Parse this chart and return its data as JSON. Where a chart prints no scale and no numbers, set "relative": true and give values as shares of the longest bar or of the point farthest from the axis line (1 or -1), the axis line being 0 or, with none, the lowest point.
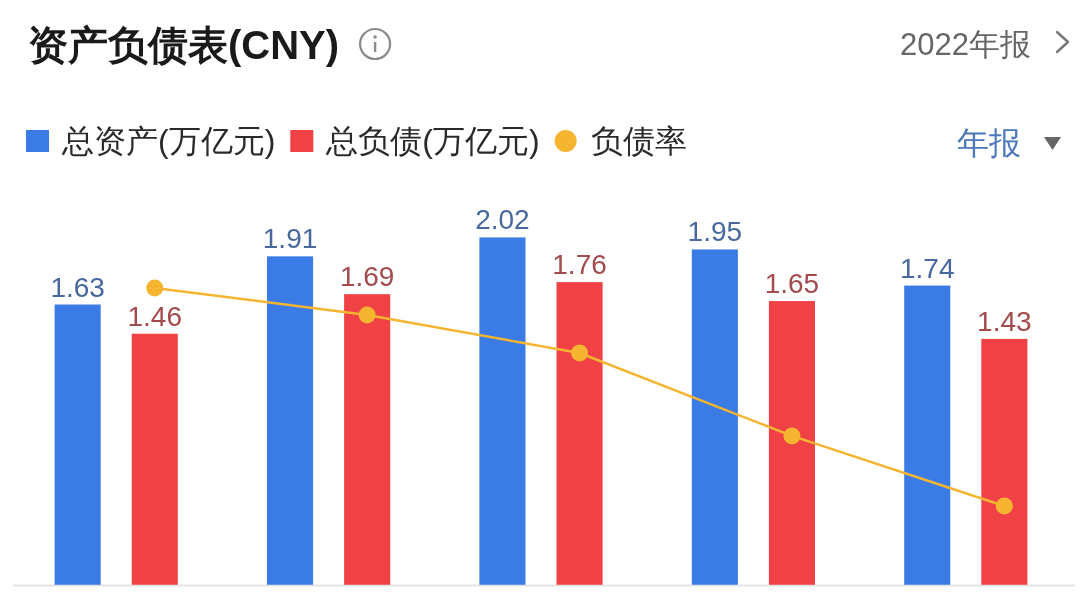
{
  "chart_data": [
    {
      "type": "bar",
      "title": "资产负债表(CNY)",
      "annotations": [
        "2022年报",
        "年报"
      ],
      "categories": [
        null,
        null,
        null,
        null,
        null
      ],
      "legend": "top left",
      "data_labels": true,
      "series": [
        {
          "name": "总资产(万亿元)",
          "color": "#3a7be6",
          "values": [
            1.63,
            1.91,
            2.02,
            1.95,
            1.74
          ]
        },
        {
          "name": "总负债(万亿元)",
          "color": "#f04145",
          "values": [
            1.46,
            1.69,
            1.76,
            1.65,
            1.43
          ]
        }
      ]
    },
    {
      "type": "line",
      "relative": true,
      "categories": [
        null,
        null,
        null,
        null,
        null
      ],
      "legend": "top",
      "marker": "circle",
      "series": [
        {
          "name": "负债率",
          "color": "#f5b531",
          "values": [
            1,
            0.909,
            0.781,
            0.502,
            0.266
          ]
        }
      ]
    }
  ]
}
